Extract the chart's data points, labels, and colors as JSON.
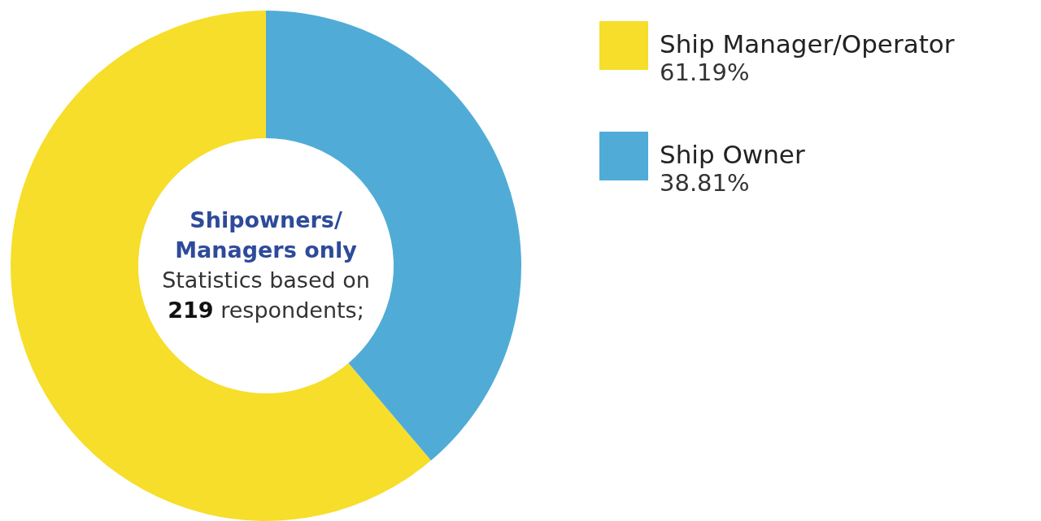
{
  "chart_data": {
    "type": "donut",
    "categories": [
      "Ship Manager/Operator",
      "Ship Owner"
    ],
    "values": [
      61.19,
      38.81
    ],
    "colors": [
      "#f6de2a",
      "#50acd6"
    ],
    "value_labels": [
      "61.19%",
      "38.81%"
    ],
    "legend": "top right",
    "annotations": [
      "Shipowners/ Managers only",
      "Statistics based on 219 respondents;"
    ]
  }
}
